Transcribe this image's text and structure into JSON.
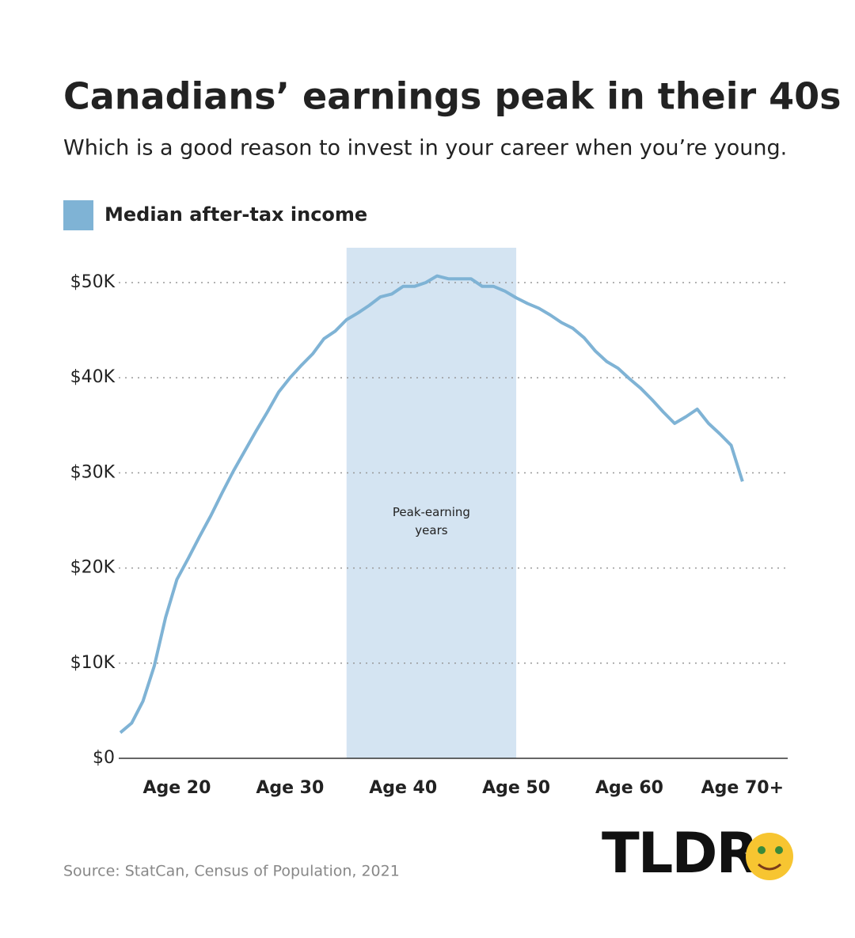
{
  "chart_data": {
    "type": "line",
    "title": "Canadians’ earnings peak in their 40s",
    "subtitle": "Which is a good reason to invest in your career when you’re young.",
    "x": [
      15,
      16,
      17,
      18,
      19,
      20,
      21,
      22,
      23,
      24,
      25,
      26,
      27,
      28,
      29,
      30,
      31,
      32,
      33,
      34,
      35,
      36,
      37,
      38,
      39,
      40,
      41,
      42,
      43,
      44,
      45,
      46,
      47,
      48,
      49,
      50,
      51,
      52,
      53,
      54,
      55,
      56,
      57,
      58,
      59,
      60,
      61,
      62,
      63,
      64,
      65,
      66,
      67,
      68,
      69,
      70
    ],
    "series": [
      {
        "name": "Median after-tax income",
        "color": "#7fb3d5",
        "values": [
          2.7,
          3.7,
          6.0,
          9.7,
          14.8,
          18.8,
          21.0,
          23.3,
          25.5,
          27.9,
          30.2,
          32.3,
          34.4,
          36.4,
          38.5,
          40.0,
          41.3,
          42.5,
          44.1,
          44.9,
          46.1,
          46.8,
          47.6,
          48.5,
          48.8,
          49.6,
          49.6,
          50.0,
          50.7,
          50.4,
          50.4,
          50.4,
          49.6,
          49.6,
          49.1,
          48.4,
          47.8,
          47.3,
          46.6,
          45.8,
          45.2,
          44.2,
          42.8,
          41.7,
          41.0,
          39.9,
          38.9,
          37.7,
          36.4,
          35.2,
          35.9,
          36.7,
          35.2,
          34.1,
          32.9,
          29.1
        ]
      }
    ],
    "highlight": {
      "range": [
        35,
        50
      ],
      "label": "Peak-earning years",
      "color": "#d4e4f2"
    },
    "xlim": [
      15,
      74
    ],
    "xticks": [
      {
        "value": 20,
        "label": "Age 20"
      },
      {
        "value": 30,
        "label": "Age 30"
      },
      {
        "value": 40,
        "label": "Age 40"
      },
      {
        "value": 50,
        "label": "Age 50"
      },
      {
        "value": 60,
        "label": "Age 60"
      },
      {
        "value": 70,
        "label": "Age 70+"
      }
    ],
    "ylim": [
      0,
      52
    ],
    "yticks": [
      {
        "value": 0,
        "label": "$0"
      },
      {
        "value": 10,
        "label": "$10K"
      },
      {
        "value": 20,
        "label": "$20K"
      },
      {
        "value": 30,
        "label": "$30K"
      },
      {
        "value": 40,
        "label": "$40K"
      },
      {
        "value": 50,
        "label": "$50K"
      }
    ],
    "grid": true,
    "source": "Source: StatCan, Census of Population, 2021",
    "logo": "TLDR"
  }
}
